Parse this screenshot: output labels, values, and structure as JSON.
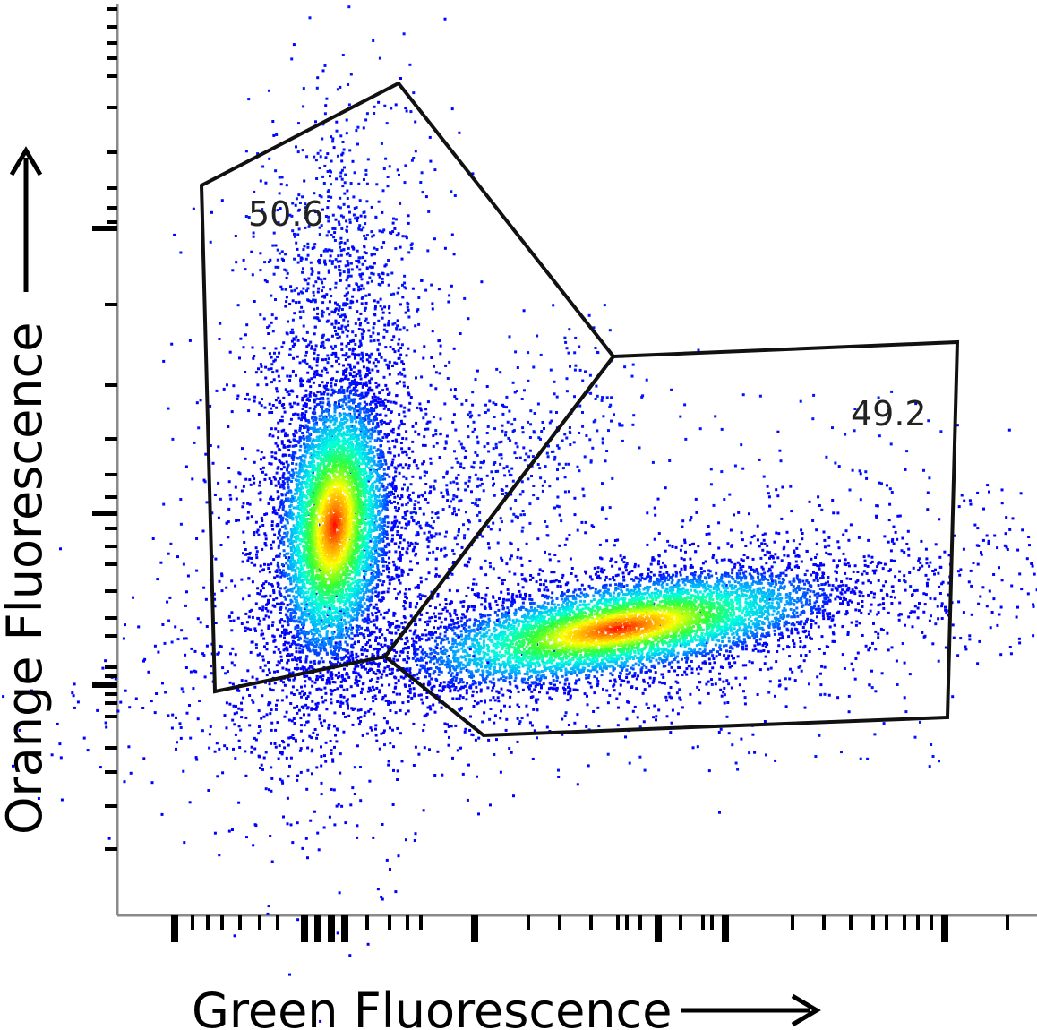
{
  "chart_data": {
    "type": "scatter",
    "subtype": "flow-cytometry-density-dot-plot",
    "xlabel": "Green Fluorescence",
    "ylabel": "Orange Fluorescence",
    "x_scale": "log",
    "y_scale": "log",
    "tick_labels_shown": false,
    "grid": false,
    "density_colormap": [
      "#0000ff",
      "#00aaff",
      "#00ffdd",
      "#33ff33",
      "#ffff00",
      "#ff8800",
      "#ff0000"
    ],
    "series": [
      {
        "name": "",
        "description": "Orange-high / Green-low population",
        "value_label": "50.6",
        "percent": 50.6
      },
      {
        "name": "",
        "description": "Green-high / Orange-low population",
        "value_label": "49.2",
        "percent": 49.2
      }
    ],
    "gates": [
      {
        "label": "50.6",
        "value": 50.6
      },
      {
        "label": "49.2",
        "value": 49.2
      }
    ]
  },
  "colors": {
    "gate_stroke": "#111111",
    "axis": "#777777",
    "tick": "#000000"
  }
}
